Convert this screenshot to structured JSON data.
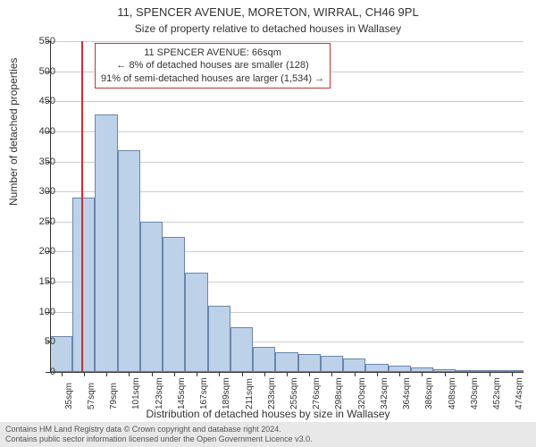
{
  "title": "11, SPENCER AVENUE, MORETON, WIRRAL, CH46 9PL",
  "subtitle": "Size of property relative to detached houses in Wallasey",
  "annotation": {
    "line1": "11 SPENCER AVENUE: 66sqm",
    "line2": "← 8% of detached houses are smaller (128)",
    "line3": "91% of semi-detached houses are larger (1,534) →"
  },
  "chart": {
    "type": "histogram",
    "ylabel": "Number of detached properties",
    "xlabel": "Distribution of detached houses by size in Wallasey",
    "ylim": [
      0,
      550
    ],
    "ytick_step": 50,
    "yticks": [
      0,
      50,
      100,
      150,
      200,
      250,
      300,
      350,
      400,
      450,
      500,
      550
    ],
    "xticks": [
      "35sqm",
      "57sqm",
      "79sqm",
      "101sqm",
      "123sqm",
      "145sqm",
      "167sqm",
      "189sqm",
      "211sqm",
      "233sqm",
      "255sqm",
      "276sqm",
      "298sqm",
      "320sqm",
      "342sqm",
      "364sqm",
      "386sqm",
      "408sqm",
      "430sqm",
      "452sqm",
      "474sqm"
    ],
    "bar_color": "#bdd1e8",
    "bar_border": "#6b86ad",
    "grid_color": "#cccccc",
    "background_color": "#ffffff",
    "ref_line_color": "#c43333",
    "ref_line_x_index": 1.4,
    "values": [
      60,
      290,
      428,
      368,
      250,
      225,
      165,
      110,
      75,
      42,
      32,
      30,
      27,
      22,
      14,
      10,
      8,
      5,
      3,
      2,
      2
    ]
  },
  "footer": {
    "line1": "Contains HM Land Registry data © Crown copyright and database right 2024.",
    "line2": "Contains public sector information licensed under the Open Government Licence v3.0."
  }
}
